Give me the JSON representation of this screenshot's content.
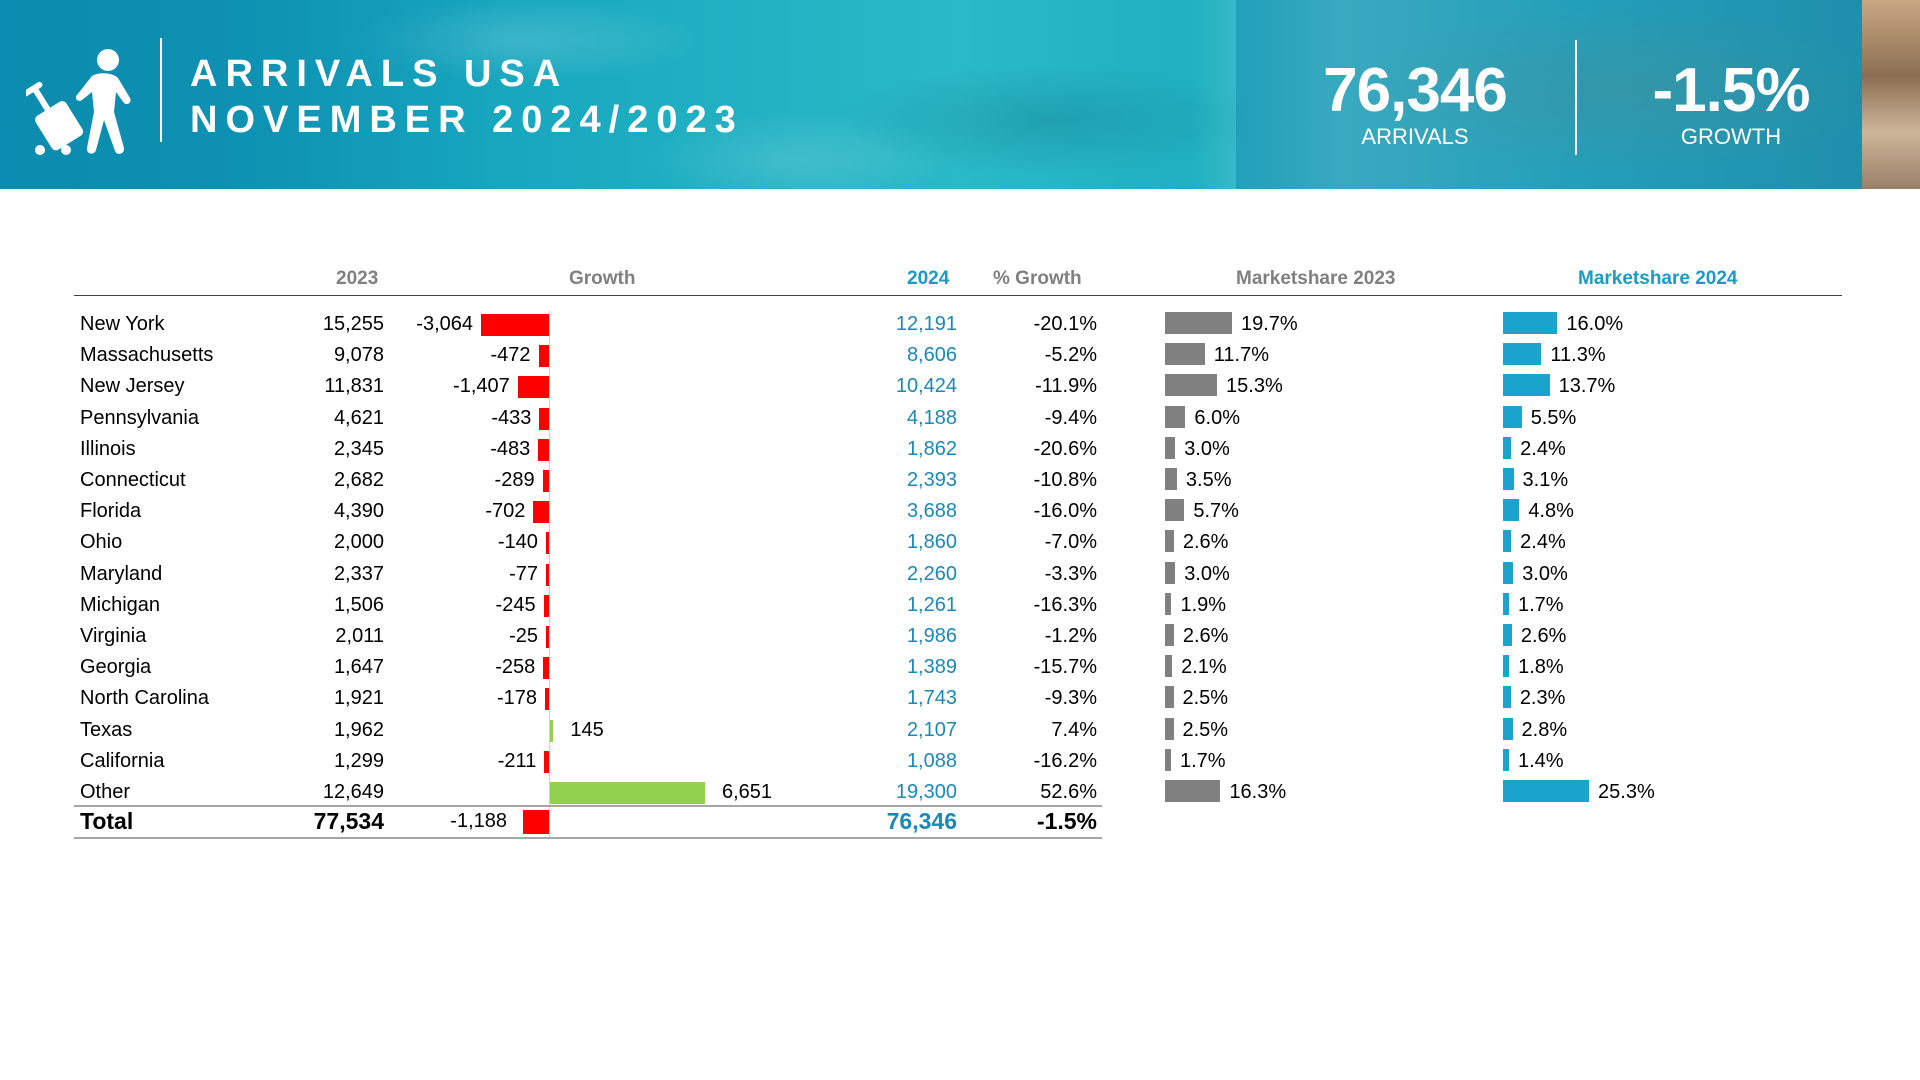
{
  "header": {
    "title_line1": "ARRIVALS USA",
    "title_line2": "NOVEMBER 2024/2023",
    "arrivals_value": "76,346",
    "arrivals_label": "ARRIVALS",
    "growth_value": "-1.5%",
    "growth_label": "GROWTH",
    "icon": "traveler-with-luggage-icon"
  },
  "colors": {
    "banner": "#17a3be",
    "negative_bar": "#ff0000",
    "positive_bar": "#92d050",
    "marketshare_2023_bar": "#808080",
    "marketshare_2024_bar": "#1aa3cc",
    "value_2024_text": "#1a88b8"
  },
  "columns": {
    "c2023": "2023",
    "growth": "Growth",
    "c2024": "2024",
    "pct_growth": "% Growth",
    "ms2023": "Marketshare 2023",
    "ms2024": "Marketshare 2024"
  },
  "rows": [
    {
      "state": "New York",
      "v2023": "15,255",
      "growth": -3064,
      "growth_label": "-3,064",
      "v2024": "12,191",
      "pct": "-20.1%",
      "ms2023": 19.7,
      "ms2023_label": "19.7%",
      "ms2024": 16.0,
      "ms2024_label": "16.0%"
    },
    {
      "state": "Massachusetts",
      "v2023": "9,078",
      "growth": -472,
      "growth_label": "-472",
      "v2024": "8,606",
      "pct": "-5.2%",
      "ms2023": 11.7,
      "ms2023_label": "11.7%",
      "ms2024": 11.3,
      "ms2024_label": "11.3%"
    },
    {
      "state": "New Jersey",
      "v2023": "11,831",
      "growth": -1407,
      "growth_label": "-1,407",
      "v2024": "10,424",
      "pct": "-11.9%",
      "ms2023": 15.3,
      "ms2023_label": "15.3%",
      "ms2024": 13.7,
      "ms2024_label": "13.7%"
    },
    {
      "state": "Pennsylvania",
      "v2023": "4,621",
      "growth": -433,
      "growth_label": "-433",
      "v2024": "4,188",
      "pct": "-9.4%",
      "ms2023": 6.0,
      "ms2023_label": "6.0%",
      "ms2024": 5.5,
      "ms2024_label": "5.5%"
    },
    {
      "state": "Illinois",
      "v2023": "2,345",
      "growth": -483,
      "growth_label": "-483",
      "v2024": "1,862",
      "pct": "-20.6%",
      "ms2023": 3.0,
      "ms2023_label": "3.0%",
      "ms2024": 2.4,
      "ms2024_label": "2.4%"
    },
    {
      "state": "Connecticut",
      "v2023": "2,682",
      "growth": -289,
      "growth_label": "-289",
      "v2024": "2,393",
      "pct": "-10.8%",
      "ms2023": 3.5,
      "ms2023_label": "3.5%",
      "ms2024": 3.1,
      "ms2024_label": "3.1%"
    },
    {
      "state": "Florida",
      "v2023": "4,390",
      "growth": -702,
      "growth_label": "-702",
      "v2024": "3,688",
      "pct": "-16.0%",
      "ms2023": 5.7,
      "ms2023_label": "5.7%",
      "ms2024": 4.8,
      "ms2024_label": "4.8%"
    },
    {
      "state": "Ohio",
      "v2023": "2,000",
      "growth": -140,
      "growth_label": "-140",
      "v2024": "1,860",
      "pct": "-7.0%",
      "ms2023": 2.6,
      "ms2023_label": "2.6%",
      "ms2024": 2.4,
      "ms2024_label": "2.4%"
    },
    {
      "state": "Maryland",
      "v2023": "2,337",
      "growth": -77,
      "growth_label": "-77",
      "v2024": "2,260",
      "pct": "-3.3%",
      "ms2023": 3.0,
      "ms2023_label": "3.0%",
      "ms2024": 3.0,
      "ms2024_label": "3.0%"
    },
    {
      "state": "Michigan",
      "v2023": "1,506",
      "growth": -245,
      "growth_label": "-245",
      "v2024": "1,261",
      "pct": "-16.3%",
      "ms2023": 1.9,
      "ms2023_label": "1.9%",
      "ms2024": 1.7,
      "ms2024_label": "1.7%"
    },
    {
      "state": "Virginia",
      "v2023": "2,011",
      "growth": -25,
      "growth_label": "-25",
      "v2024": "1,986",
      "pct": "-1.2%",
      "ms2023": 2.6,
      "ms2023_label": "2.6%",
      "ms2024": 2.6,
      "ms2024_label": "2.6%"
    },
    {
      "state": "Georgia",
      "v2023": "1,647",
      "growth": -258,
      "growth_label": "-258",
      "v2024": "1,389",
      "pct": "-15.7%",
      "ms2023": 2.1,
      "ms2023_label": "2.1%",
      "ms2024": 1.8,
      "ms2024_label": "1.8%"
    },
    {
      "state": "North Carolina",
      "v2023": "1,921",
      "growth": -178,
      "growth_label": "-178",
      "v2024": "1,743",
      "pct": "-9.3%",
      "ms2023": 2.5,
      "ms2023_label": "2.5%",
      "ms2024": 2.3,
      "ms2024_label": "2.3%"
    },
    {
      "state": "Texas",
      "v2023": "1,962",
      "growth": 145,
      "growth_label": "145",
      "v2024": "2,107",
      "pct": "7.4%",
      "ms2023": 2.5,
      "ms2023_label": "2.5%",
      "ms2024": 2.8,
      "ms2024_label": "2.8%"
    },
    {
      "state": "California",
      "v2023": "1,299",
      "growth": -211,
      "growth_label": "-211",
      "v2024": "1,088",
      "pct": "-16.2%",
      "ms2023": 1.7,
      "ms2023_label": "1.7%",
      "ms2024": 1.4,
      "ms2024_label": "1.4%"
    },
    {
      "state": "Other",
      "v2023": "12,649",
      "growth": 6651,
      "growth_label": "6,651",
      "v2024": "19,300",
      "pct": "52.6%",
      "ms2023": 16.3,
      "ms2023_label": "16.3%",
      "ms2024": 25.3,
      "ms2024_label": "25.3%"
    }
  ],
  "total": {
    "label": "Total",
    "v2023": "77,534",
    "growth": -1188,
    "growth_label": "-1,188",
    "v2024": "76,346",
    "pct": "-1.5%"
  }
}
